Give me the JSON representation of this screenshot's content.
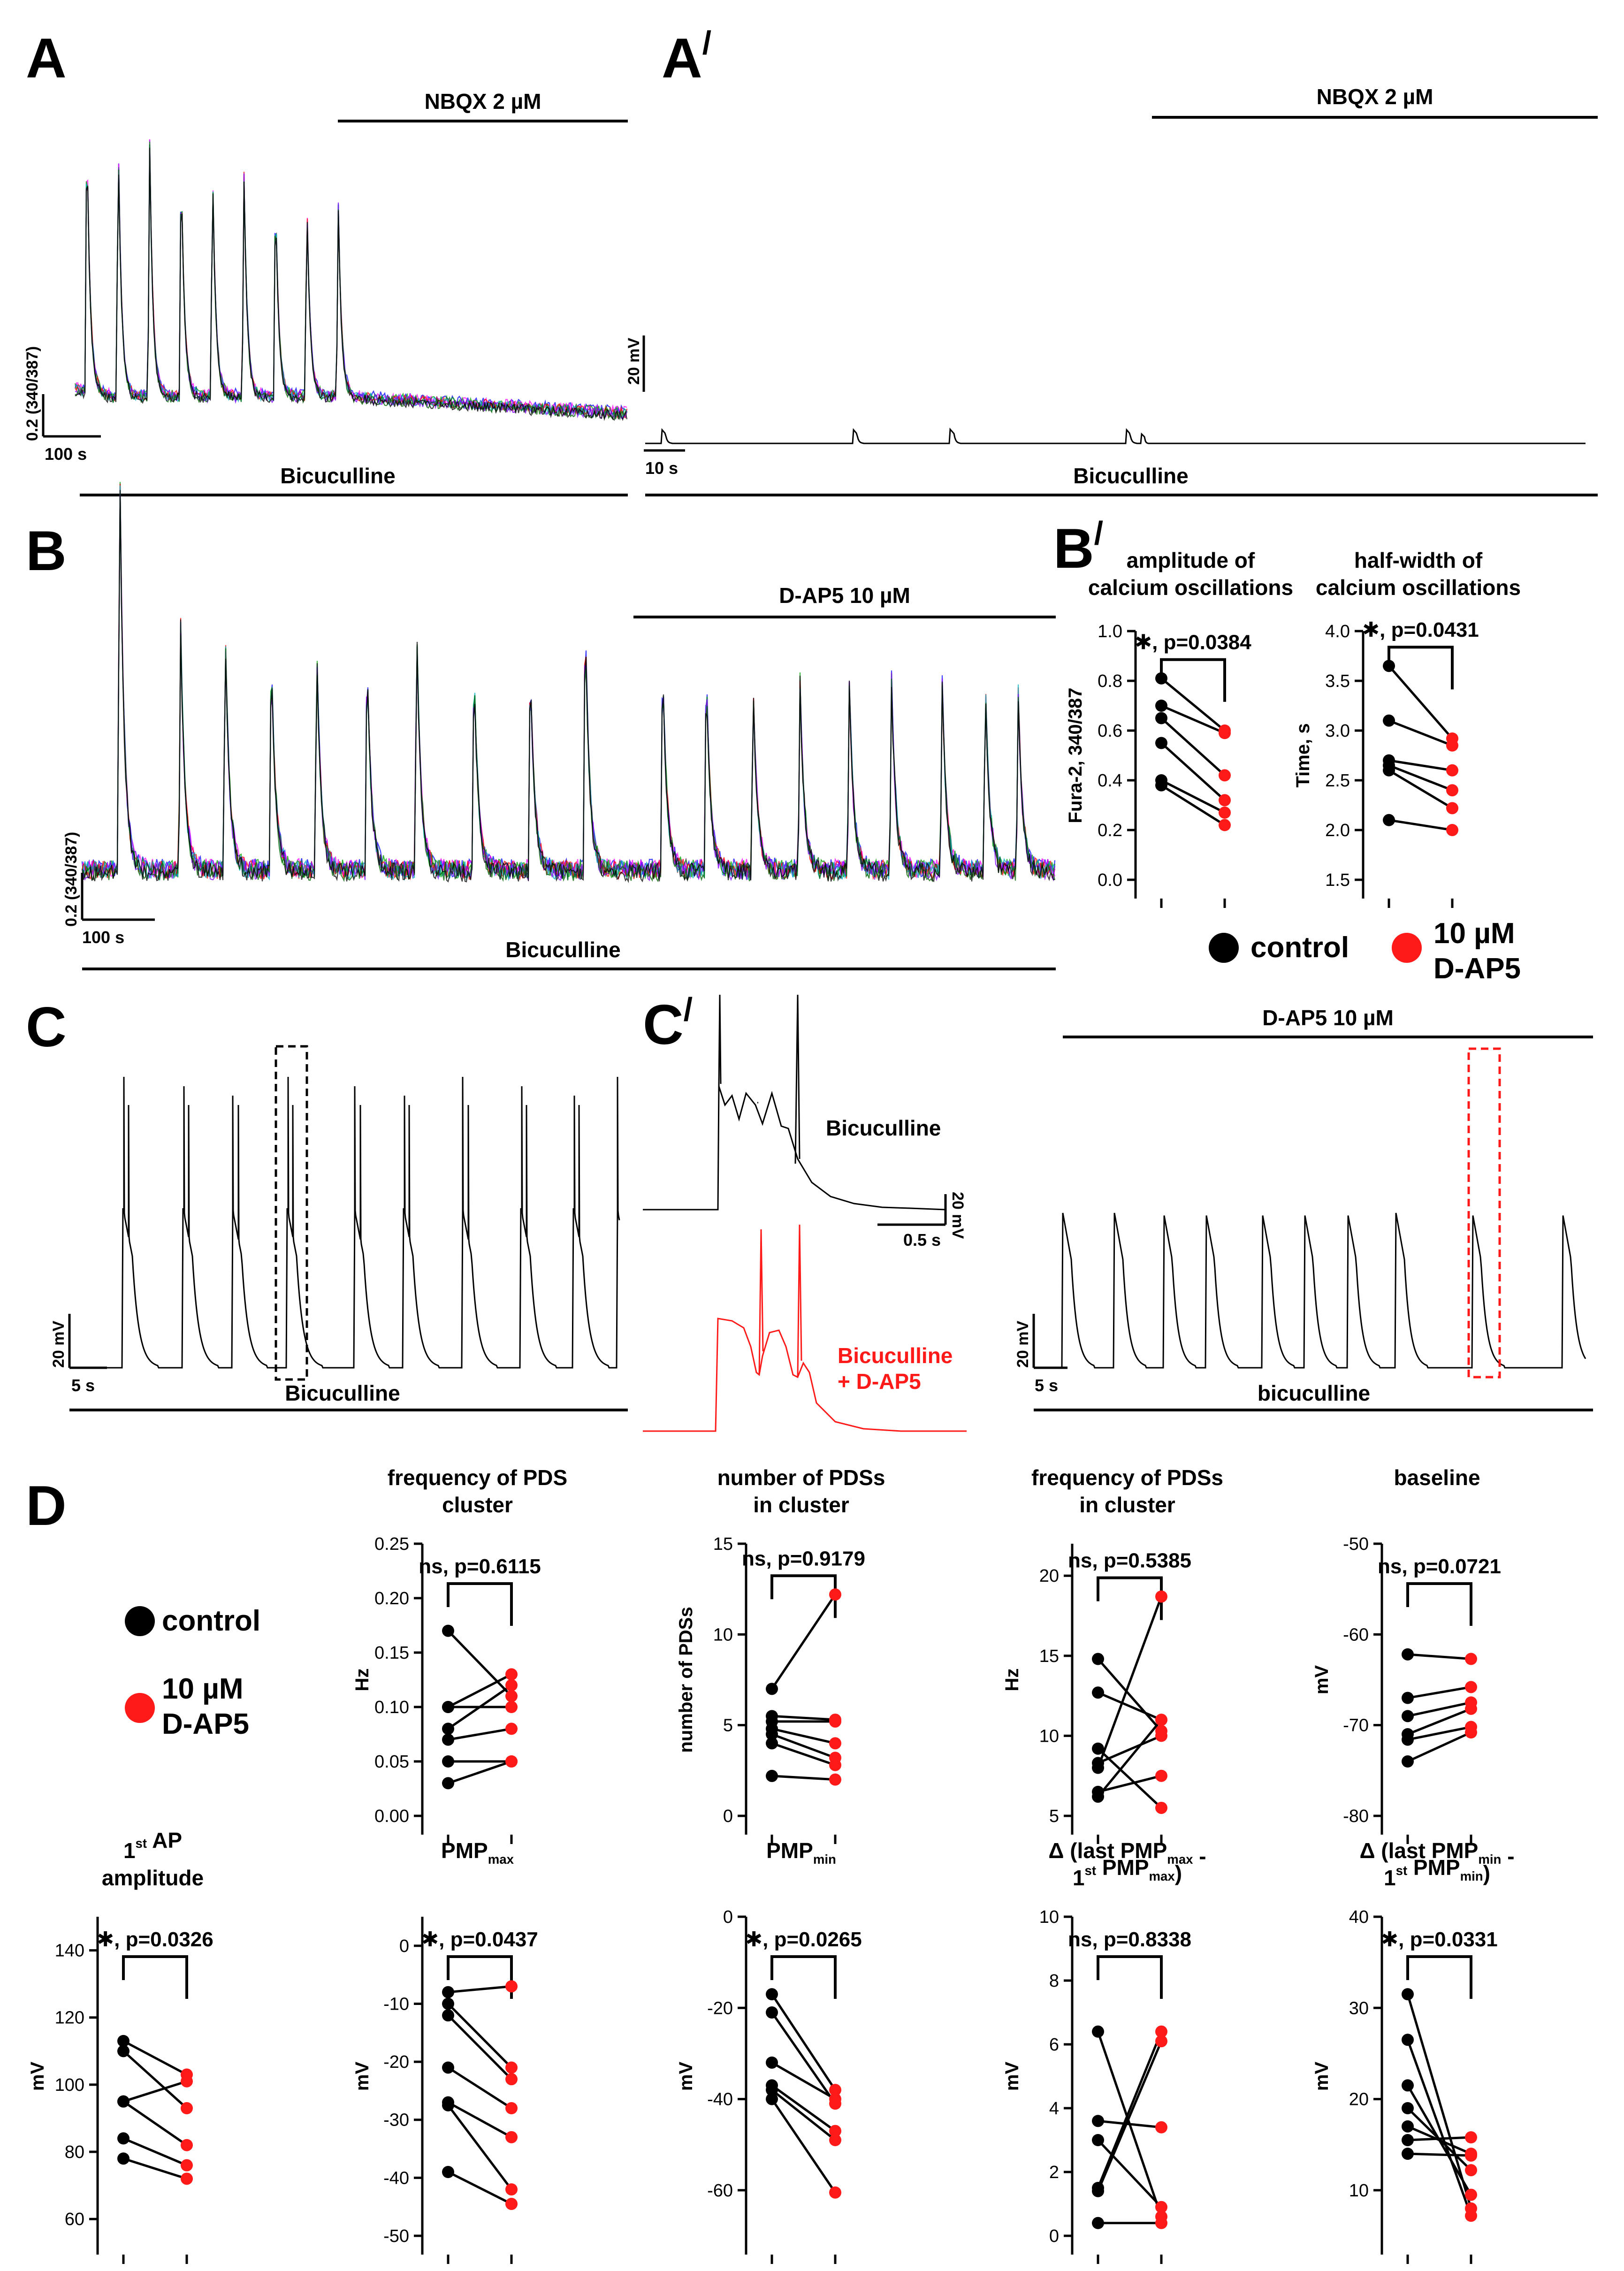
{
  "colors": {
    "control": "#000000",
    "dap5": "#ff1a1a",
    "trace_colors": [
      "#0000ff",
      "#ff00ff",
      "#00a000",
      "#ff0000",
      "#00b0c0",
      "#8000ff",
      "#006400",
      "#000000"
    ]
  },
  "panels": {
    "A": {
      "label": "A",
      "drug_bar": "NBQX 2 µM",
      "scale_y": "0.2 (340/387)",
      "scale_x": "100 s",
      "condition_bar": "Bicuculline",
      "peak_count_before_drug": 9
    },
    "A_prime": {
      "label": "A",
      "prime": "/",
      "drug_bar": "NBQX 2 µM",
      "scale_y": "20 mV",
      "scale_x": "10 s",
      "condition_bar": "Bicuculline"
    },
    "B": {
      "label": "B",
      "drug_bar": "D-AP5 10 µM",
      "scale_y": "0.2 (340/387)",
      "scale_x": "100 s",
      "condition_bar": "Bicuculline"
    },
    "B_prime": {
      "label": "B",
      "prime": "/",
      "legend": {
        "control": "control",
        "dap5_line1": "10 µM",
        "dap5_line2": "D-AP5"
      }
    },
    "C": {
      "label": "C",
      "scale_y": "20 mV",
      "scale_x": "5 s",
      "condition_bar": "Bicuculline"
    },
    "C_prime": {
      "label": "C",
      "prime": "/",
      "trace1_label": "Bicuculline",
      "trace2_label_line1": "Bicuculline",
      "trace2_label_line2": "+ D-AP5",
      "scale_x": "0.5 s",
      "scale_y": "20 mV",
      "right_drug_bar": "D-AP5 10 µM",
      "right_scale_y": "20 mV",
      "right_scale_x": "5 s",
      "right_condition_bar": "bicuculline"
    },
    "D": {
      "label": "D",
      "legend": {
        "control": "control",
        "dap5_line1": "10 µM",
        "dap5_line2": "D-AP5"
      }
    }
  },
  "chart_data": [
    {
      "type": "scatter",
      "id": "amp_ca",
      "title": [
        "amplitude of",
        "calcium oscillations"
      ],
      "ylabel": "Fura-2, 340/387",
      "ylim": [
        0.0,
        1.0
      ],
      "yticks": [
        0.0,
        0.2,
        0.4,
        0.6,
        0.8,
        1.0
      ],
      "ticklabels": [
        "0.0",
        "0.2",
        "0.4",
        "0.6",
        "0.8",
        "1.0"
      ],
      "stat": "✱, p=0.0384",
      "pairs": [
        [
          0.81,
          0.6
        ],
        [
          0.7,
          0.59
        ],
        [
          0.65,
          0.42
        ],
        [
          0.55,
          0.32
        ],
        [
          0.4,
          0.27
        ],
        [
          0.38,
          0.22
        ]
      ]
    },
    {
      "type": "scatter",
      "id": "hw_ca",
      "title": [
        "half-width of",
        "calcium oscillations"
      ],
      "ylabel": "Time, s",
      "ylim": [
        1.5,
        4.0
      ],
      "yticks": [
        1.5,
        2.0,
        2.5,
        3.0,
        3.5,
        4.0
      ],
      "ticklabels": [
        "1.5",
        "2.0",
        "2.5",
        "3.0",
        "3.5",
        "4.0"
      ],
      "stat": "✱, p=0.0431",
      "pairs": [
        [
          3.65,
          2.92
        ],
        [
          3.1,
          2.85
        ],
        [
          2.7,
          2.6
        ],
        [
          2.65,
          2.4
        ],
        [
          2.6,
          2.22
        ],
        [
          2.1,
          2.0
        ]
      ]
    },
    {
      "type": "scatter",
      "id": "freq_cluster",
      "title": [
        "frequency of PDS",
        "cluster"
      ],
      "ylabel": "Hz",
      "ylim": [
        0.0,
        0.25
      ],
      "yticks": [
        0.0,
        0.05,
        0.1,
        0.15,
        0.2,
        0.25
      ],
      "ticklabels": [
        "0.00",
        "0.05",
        "0.10",
        "0.15",
        "0.20",
        "0.25"
      ],
      "stat": "ns, p=0.6115",
      "pairs": [
        [
          0.17,
          0.11
        ],
        [
          0.1,
          0.13
        ],
        [
          0.1,
          0.1
        ],
        [
          0.08,
          0.12
        ],
        [
          0.07,
          0.08
        ],
        [
          0.05,
          0.05
        ],
        [
          0.03,
          0.05
        ]
      ]
    },
    {
      "type": "scatter",
      "id": "num_pds",
      "title": [
        "number of PDSs",
        "in cluster"
      ],
      "ylabel": "number of PDSs",
      "ylim": [
        0,
        15
      ],
      "yticks": [
        0,
        5,
        10,
        15
      ],
      "ticklabels": [
        "0",
        "5",
        "10",
        "15"
      ],
      "stat": "ns, p=0.9179",
      "pairs": [
        [
          7.0,
          12.2
        ],
        [
          5.5,
          5.3
        ],
        [
          5.2,
          5.2
        ],
        [
          4.8,
          4.0
        ],
        [
          4.5,
          3.2
        ],
        [
          4.0,
          2.8
        ],
        [
          2.2,
          2.0
        ]
      ]
    },
    {
      "type": "scatter",
      "id": "freq_pds",
      "title": [
        "frequency of PDSs",
        "in cluster"
      ],
      "ylabel": "Hz",
      "ylim": [
        5,
        22
      ],
      "yticks": [
        5,
        10,
        15,
        20
      ],
      "ticklabels": [
        "5",
        "10",
        "15",
        "20"
      ],
      "stat": "ns, p=0.5385",
      "pairs": [
        [
          14.8,
          10.3
        ],
        [
          12.7,
          11.0
        ],
        [
          9.2,
          5.5
        ],
        [
          8.3,
          10.0
        ],
        [
          8.0,
          18.7
        ],
        [
          6.5,
          7.5
        ],
        [
          6.2,
          11.0
        ]
      ]
    },
    {
      "type": "scatter",
      "id": "baseline",
      "title": [
        "baseline",
        ""
      ],
      "ylabel": "mV",
      "ylim": [
        -80,
        -50
      ],
      "yticks": [
        -80,
        -70,
        -60,
        -50
      ],
      "ticklabels": [
        "-80",
        "-70",
        "-60",
        "-50"
      ],
      "stat": "ns, p=0.0721",
      "pairs": [
        [
          -62.2,
          -62.7
        ],
        [
          -67.0,
          -65.8
        ],
        [
          -69.0,
          -67.5
        ],
        [
          -71.0,
          -68.2
        ],
        [
          -71.6,
          -70.2
        ],
        [
          -74.0,
          -70.8
        ]
      ]
    },
    {
      "type": "scatter",
      "id": "first_ap",
      "title": [
        "1st AP",
        "amplitude"
      ],
      "ylabel": "mV",
      "ylim": [
        55,
        150
      ],
      "yticks": [
        60,
        80,
        100,
        120,
        140
      ],
      "ticklabels": [
        "60",
        "80",
        "100",
        "120",
        "140"
      ],
      "stat": "✱, p=0.0326",
      "pairs": [
        [
          113,
          103
        ],
        [
          110,
          93
        ],
        [
          95,
          101
        ],
        [
          95,
          82
        ],
        [
          84,
          76
        ],
        [
          78,
          72
        ]
      ]
    },
    {
      "type": "scatter",
      "id": "pmp_max",
      "title": [
        "PMPmax",
        ""
      ],
      "ylabel": "mV",
      "ylim": [
        -50,
        5
      ],
      "yticks": [
        -50,
        -40,
        -30,
        -20,
        -10,
        0
      ],
      "ticklabels": [
        "-50",
        "-40",
        "-30",
        "-20",
        "-10",
        "0"
      ],
      "stat": "✱, p=0.0437",
      "pairs": [
        [
          -8,
          -7
        ],
        [
          -10,
          -21
        ],
        [
          -12,
          -23
        ],
        [
          -21,
          -28
        ],
        [
          -27,
          -33
        ],
        [
          -27.5,
          -42
        ],
        [
          -39,
          -44.5
        ]
      ]
    },
    {
      "type": "scatter",
      "id": "pmp_min",
      "title": [
        "PMPmin",
        ""
      ],
      "ylabel": "mV",
      "ylim": [
        -70,
        0
      ],
      "yticks": [
        -60,
        -40,
        -20,
        0
      ],
      "ticklabels": [
        "-60",
        "-40",
        "-20",
        "0"
      ],
      "stat": "✱, p=0.0265",
      "pairs": [
        [
          -17,
          -38
        ],
        [
          -21,
          -41
        ],
        [
          -32,
          -40
        ],
        [
          -37,
          -47
        ],
        [
          -38,
          -49
        ],
        [
          -40,
          -60.5
        ]
      ]
    },
    {
      "type": "scatter",
      "id": "delta_max",
      "title": [
        "Δ (last PMPmax -",
        "1st PMPmax)"
      ],
      "ylabel": "mV",
      "ylim": [
        0,
        10
      ],
      "yticks": [
        0,
        2,
        4,
        6,
        8,
        10
      ],
      "ticklabels": [
        "0",
        "2",
        "4",
        "6",
        "8",
        "10"
      ],
      "stat": "ns, p=0.8338",
      "pairs": [
        [
          6.4,
          0.6
        ],
        [
          3.6,
          3.4
        ],
        [
          3.0,
          0.9
        ],
        [
          1.5,
          6.4
        ],
        [
          1.4,
          6.1
        ],
        [
          0.4,
          0.4
        ]
      ]
    },
    {
      "type": "scatter",
      "id": "delta_min",
      "title": [
        "Δ (last PMPmin -",
        "1st PMPmin)"
      ],
      "ylabel": "mV",
      "ylim": [
        5,
        40
      ],
      "yticks": [
        10,
        20,
        30,
        40
      ],
      "ticklabels": [
        "10",
        "20",
        "30",
        "40"
      ],
      "stat": "✱, p=0.0331",
      "pairs": [
        [
          31.5,
          8.0
        ],
        [
          26.5,
          7.2
        ],
        [
          21.5,
          9.5
        ],
        [
          19.0,
          12.2
        ],
        [
          17.0,
          14.0
        ],
        [
          15.5,
          15.8
        ],
        [
          14.0,
          13.8
        ]
      ]
    }
  ]
}
